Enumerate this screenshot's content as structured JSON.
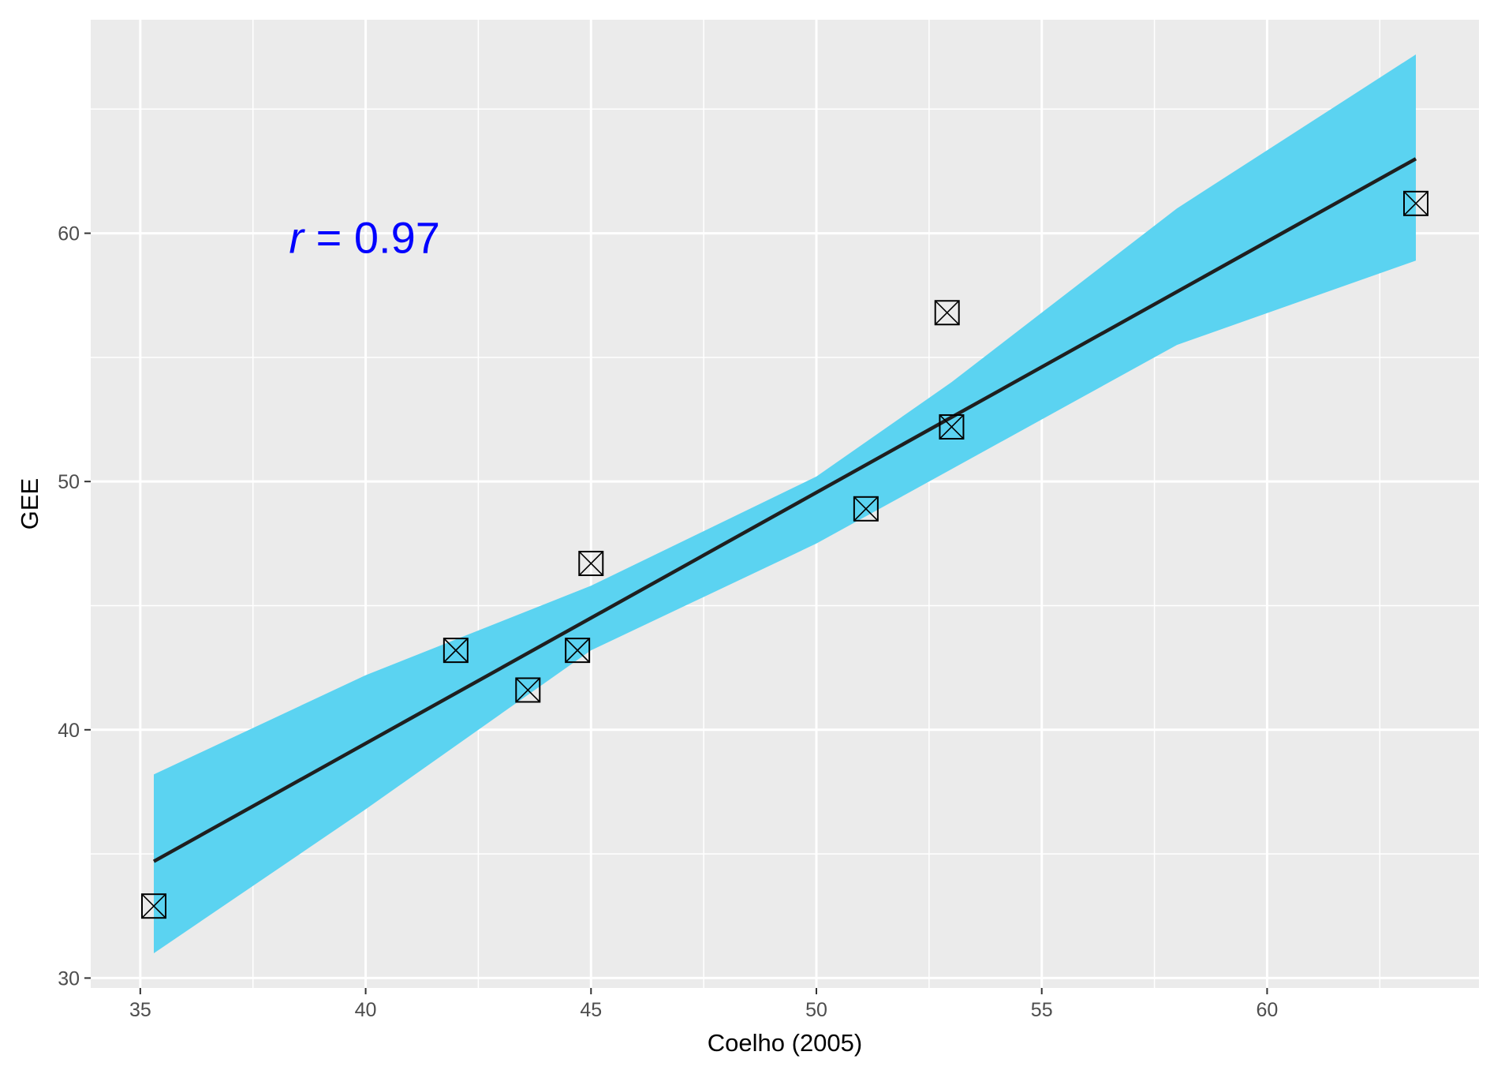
{
  "chart_data": {
    "type": "scatter",
    "title": "",
    "xlabel": "Coelho (2005)",
    "ylabel": "GEE",
    "xlim": [
      33.9,
      64.7
    ],
    "ylim": [
      29.6,
      68.6
    ],
    "x_ticks": [
      35,
      40,
      45,
      50,
      55,
      60
    ],
    "y_ticks": [
      30,
      40,
      50,
      60
    ],
    "grid": true,
    "legend": "none",
    "points": [
      {
        "x": 35.3,
        "y": 32.9
      },
      {
        "x": 42.0,
        "y": 43.2
      },
      {
        "x": 43.6,
        "y": 41.6
      },
      {
        "x": 44.7,
        "y": 43.2
      },
      {
        "x": 45.0,
        "y": 46.7
      },
      {
        "x": 51.1,
        "y": 48.9
      },
      {
        "x": 52.9,
        "y": 56.8
      },
      {
        "x": 53.0,
        "y": 52.2
      },
      {
        "x": 63.3,
        "y": 61.2
      }
    ],
    "fit_line": {
      "x": [
        35.3,
        63.3
      ],
      "y": [
        34.7,
        63.0
      ]
    },
    "confidence_band": {
      "x": [
        35.3,
        40.0,
        45.0,
        50.0,
        53.0,
        58.0,
        63.3
      ],
      "upper": [
        38.2,
        42.2,
        45.8,
        50.2,
        54.0,
        61.0,
        67.2
      ],
      "lower": [
        31.0,
        36.8,
        43.2,
        47.5,
        50.5,
        55.5,
        58.9
      ]
    },
    "annotation": {
      "italic": "r",
      "text": " = 0.97",
      "x": 38.3,
      "y": 59.2
    },
    "colors": {
      "panel": "#ebebeb",
      "grid": "#ffffff",
      "band": "#5bd3f1",
      "line": "#1f1f1f",
      "point": "#000000",
      "annotation": "#0000ff"
    }
  }
}
